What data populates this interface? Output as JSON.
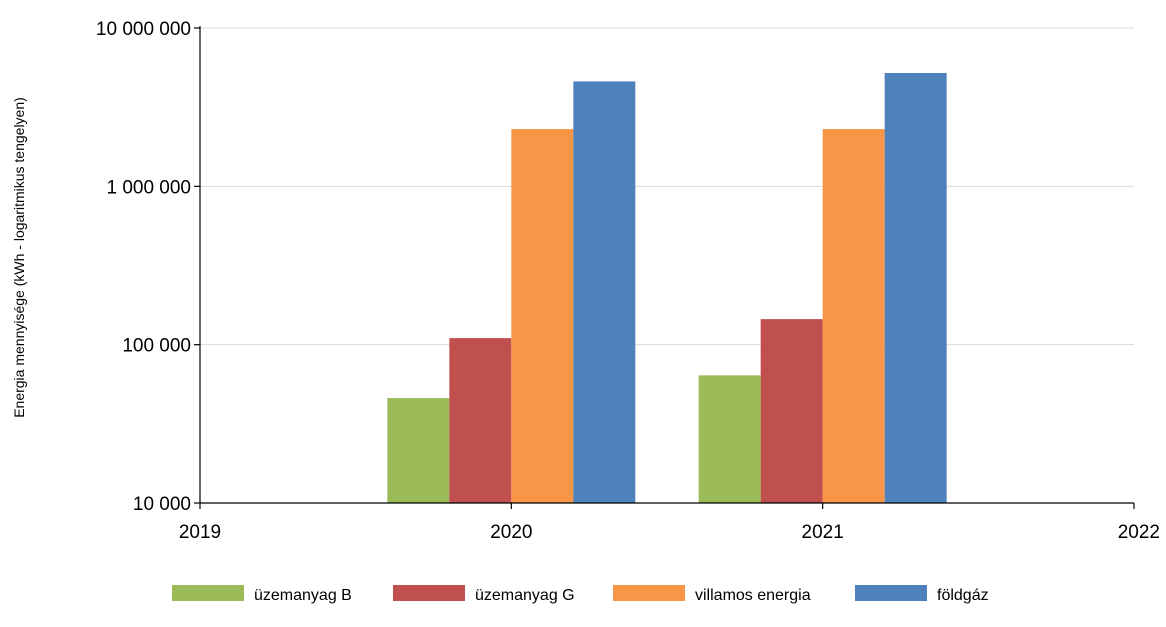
{
  "chart_data": {
    "type": "bar",
    "title": "",
    "ylabel": "Energia mennyisége (kWh - logaritmikus tengelyen)",
    "xlabel": "",
    "y_scale": "log",
    "ylim": [
      10000,
      10000000
    ],
    "y_ticks": [
      {
        "value": 10000,
        "label": "10 000"
      },
      {
        "value": 100000,
        "label": "100 000"
      },
      {
        "value": 1000000,
        "label": "1 000 000"
      },
      {
        "value": 10000000,
        "label": "10 000 000"
      }
    ],
    "x_ticks": [
      "2019",
      "2020",
      "2021",
      "2022"
    ],
    "categories": [
      "2020",
      "2021"
    ],
    "grid": true,
    "legend_position": "bottom",
    "series": [
      {
        "name": "üzemanyag B",
        "color": "#9bbb59",
        "values": [
          46000,
          64000
        ]
      },
      {
        "name": "üzemanyag G",
        "color": "#c0504d",
        "values": [
          110000,
          145000
        ]
      },
      {
        "name": "villamos energia",
        "color": "#f79646",
        "values": [
          2300000,
          2300000
        ]
      },
      {
        "name": "földgáz",
        "color": "#4f81bd",
        "values": [
          4600000,
          5200000
        ]
      }
    ]
  }
}
